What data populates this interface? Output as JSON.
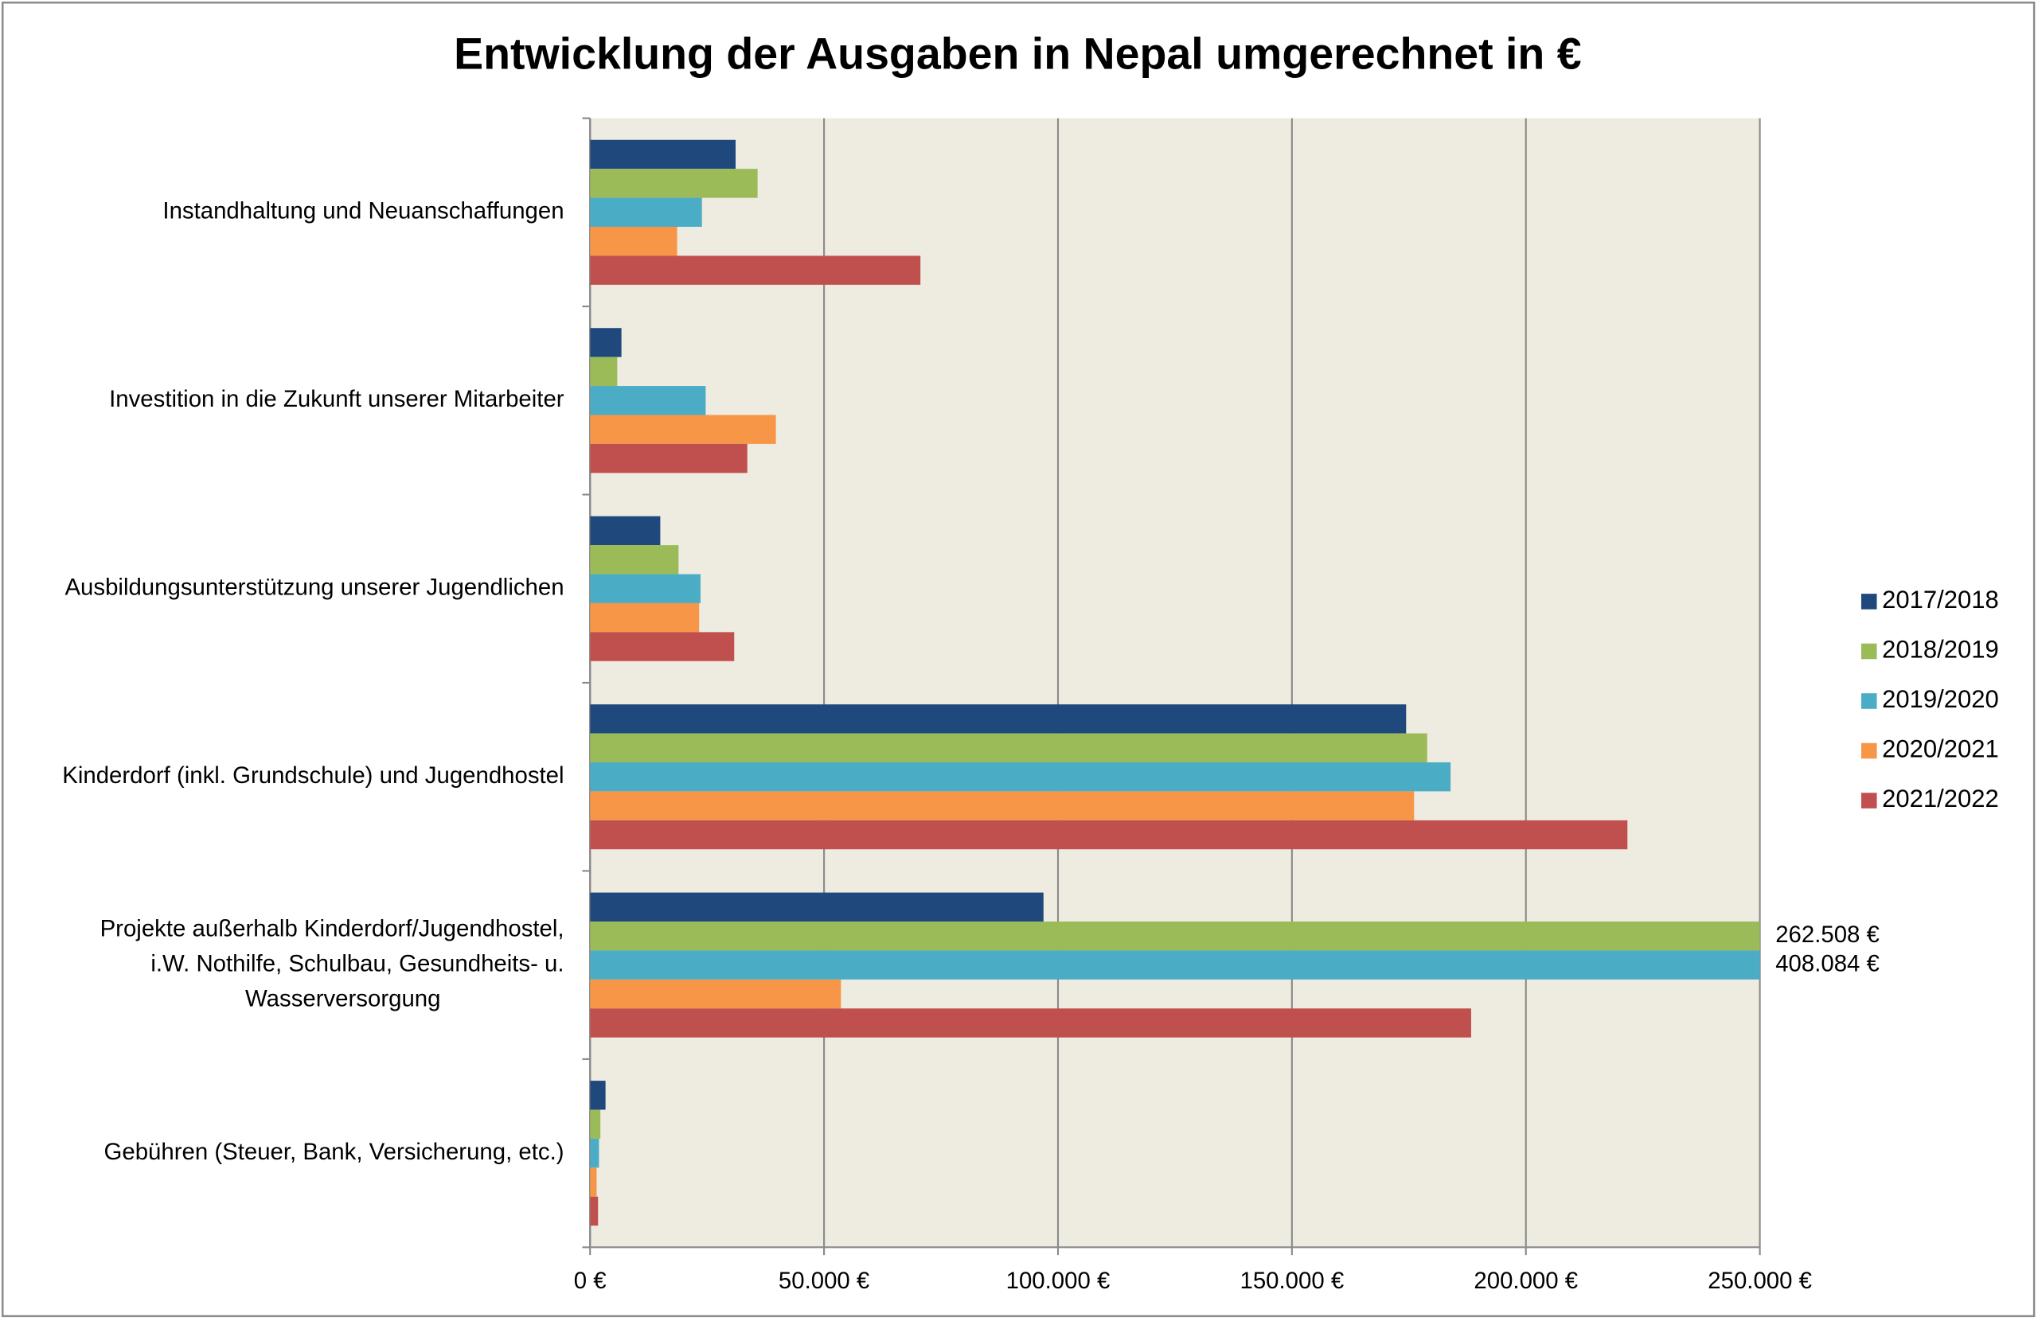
{
  "chart_data": {
    "type": "hbar",
    "title": "Entwicklung der Ausgaben in Nepal umgerechnet in €",
    "categories": [
      "Instandhaltung und Neuanschaffungen",
      "Investition in die Zukunft unserer Mitarbeiter",
      "Ausbildungsunterstützung unserer Jugendlichen",
      "Kinderdorf (inkl. Grundschule) und Jugendhostel",
      "Projekte außerhalb Kinderdorf/Jugendhostel,\ni.W. Nothilfe, Schulbau, Gesundheits- u.\nWasserversorgung",
      "Gebühren (Steuer, Bank, Versicherung, etc.)"
    ],
    "series": [
      {
        "name": "2017/2018",
        "color": "#1f497d",
        "values": [
          31100,
          6700,
          15000,
          174400,
          96900,
          3300
        ]
      },
      {
        "name": "2018/2019",
        "color": "#9bbb59",
        "values": [
          35800,
          5800,
          18900,
          178900,
          262508,
          2200
        ],
        "value_labels": [
          null,
          null,
          null,
          null,
          "262.508 €",
          null
        ]
      },
      {
        "name": "2019/2020",
        "color": "#4bacc6",
        "values": [
          23900,
          24700,
          23600,
          183900,
          408084,
          1900
        ],
        "value_labels": [
          null,
          null,
          null,
          null,
          "408.084 €",
          null
        ]
      },
      {
        "name": "2020/2021",
        "color": "#f79646",
        "values": [
          18600,
          39700,
          23300,
          176100,
          53600,
          1400
        ]
      },
      {
        "name": "2021/2022",
        "color": "#c0504d",
        "values": [
          70600,
          33600,
          30800,
          221700,
          188300,
          1700
        ]
      }
    ],
    "xlim": [
      0,
      250000
    ],
    "xticks": [
      {
        "value": 0,
        "label": "0 €"
      },
      {
        "value": 50000,
        "label": "50.000 €"
      },
      {
        "value": 100000,
        "label": "100.000 €"
      },
      {
        "value": 150000,
        "label": "150.000 €"
      },
      {
        "value": 200000,
        "label": "200.000 €"
      },
      {
        "value": 250000,
        "label": "250.000 €"
      }
    ],
    "grid": true,
    "legend": "right",
    "plot_background": "#eeebe0"
  }
}
